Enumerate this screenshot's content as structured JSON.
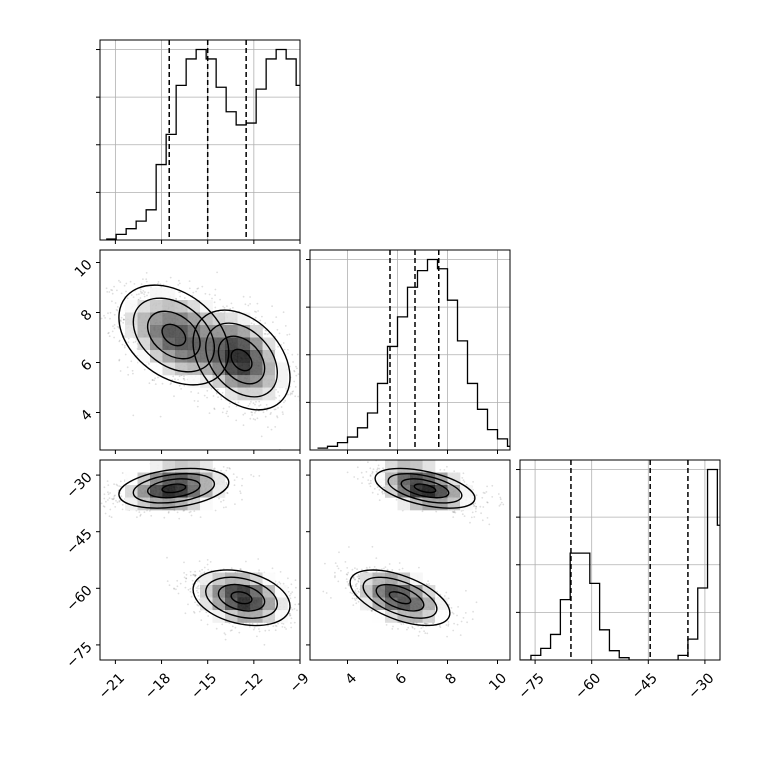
{
  "chart_data": {
    "type": "corner",
    "variables": [
      {
        "xlim": [
          -22,
          -9
        ],
        "ticks": [
          -21,
          -18,
          -15,
          -12,
          -9
        ],
        "tick_labels": [
          "−21",
          "−18",
          "−15",
          "−12",
          "−9"
        ],
        "quantiles": [
          -17.5,
          -15.0,
          -12.5
        ],
        "hist": {
          "bin_start": -21.6,
          "bin_width": 0.65,
          "counts": [
            0.5,
            3,
            6,
            10,
            16,
            40,
            56,
            82,
            96,
            101,
            96,
            81,
            68,
            61,
            62,
            80,
            96,
            101,
            96,
            82,
            51,
            26,
            11,
            5,
            1.5,
            0
          ]
        }
      },
      {
        "xlim": [
          2.5,
          10.5
        ],
        "ylim": [
          2.5,
          10.5
        ],
        "ticks": [
          4,
          6,
          8,
          10
        ],
        "tick_labels": [
          "4",
          "6",
          "8",
          "10"
        ],
        "quantiles": [
          5.7,
          6.7,
          7.65
        ],
        "hist": {
          "bin_start": 2.8,
          "bin_width": 0.4,
          "counts": [
            1,
            2,
            4,
            7,
            12,
            20,
            36,
            56,
            72,
            88,
            97,
            103,
            98,
            81,
            59,
            36,
            22,
            11,
            6,
            2
          ]
        }
      },
      {
        "xlim": [
          -79,
          -26
        ],
        "ylim": [
          -79,
          -26
        ],
        "ticks": [
          -75,
          -60,
          -45,
          -30
        ],
        "tick_labels": [
          "−75",
          "−60",
          "−45",
          "−30"
        ],
        "quantiles": [
          -65.5,
          -44.5,
          -34.5
        ],
        "hist": {
          "bin_start": -78.7,
          "bin_width": 2.6,
          "counts": [
            0,
            2,
            5,
            11,
            26,
            46,
            46,
            33,
            13,
            4,
            1,
            0,
            0,
            0,
            0,
            0,
            2,
            9,
            31,
            82,
            58,
            9,
            1
          ]
        }
      }
    ],
    "clusters": [
      {
        "mean": [
          -17.2,
          7.1,
          -33.5
        ],
        "sd": [
          1.7,
          0.95,
          2.5
        ],
        "rho": {
          "xy": -0.35,
          "xz": 0.3,
          "yz": -0.5
        }
      },
      {
        "mean": [
          -12.8,
          6.1,
          -62.5
        ],
        "sd": [
          1.5,
          0.95,
          3.5
        ],
        "rho": {
          "xy": -0.35,
          "xz": -0.3,
          "yz": -0.55
        }
      }
    ],
    "colors": {
      "line": "#000000",
      "grid": "#b0b0b0",
      "points": "#000000"
    }
  }
}
